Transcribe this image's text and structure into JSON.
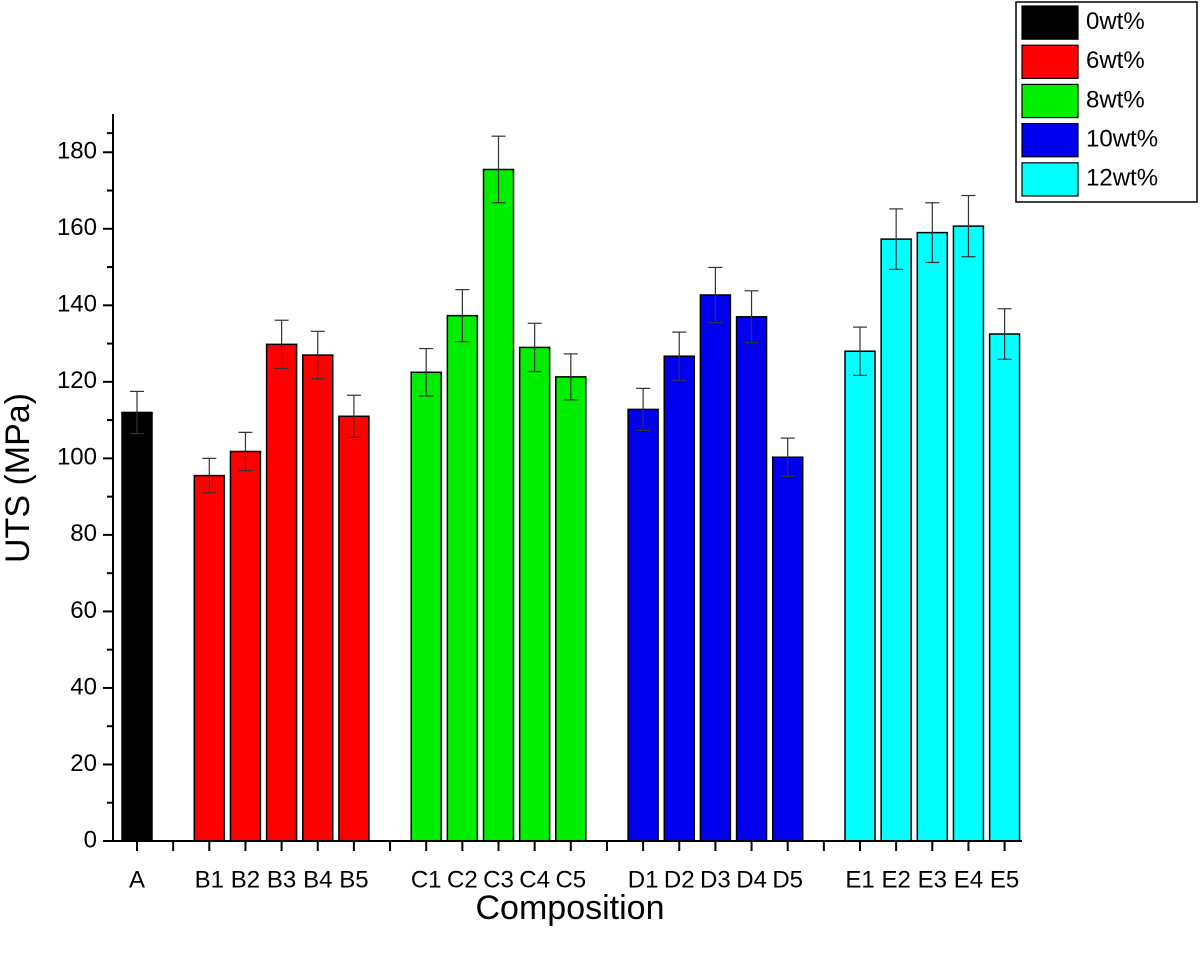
{
  "chart_data": {
    "type": "bar",
    "xlabel": "Composition",
    "ylabel": "UTS (MPa)",
    "categories": [
      "A",
      null,
      "B1",
      "B2",
      "B3",
      "B4",
      "B5",
      null,
      "C1",
      "C2",
      "C3",
      "C4",
      "C5",
      null,
      "D1",
      "D2",
      "D3",
      "D4",
      "D5",
      null,
      "E1",
      "E2",
      "E3",
      "E4",
      "E5"
    ],
    "series": [
      {
        "name": "0wt%",
        "color": "#000000",
        "values": [
          112,
          null,
          null,
          null,
          null,
          null,
          null,
          null,
          null,
          null,
          null,
          null,
          null,
          null,
          null,
          null,
          null,
          null,
          null,
          null,
          null,
          null,
          null,
          null,
          null
        ],
        "errors": [
          5.5,
          null,
          null,
          null,
          null,
          null,
          null,
          null,
          null,
          null,
          null,
          null,
          null,
          null,
          null,
          null,
          null,
          null,
          null,
          null,
          null,
          null,
          null,
          null,
          null
        ]
      },
      {
        "name": "6wt%",
        "color": "#ff0000",
        "values": [
          null,
          null,
          95.5,
          101.8,
          129.8,
          127,
          111,
          null,
          null,
          null,
          null,
          null,
          null,
          null,
          null,
          null,
          null,
          null,
          null,
          null,
          null,
          null,
          null,
          null,
          null
        ],
        "errors": [
          null,
          null,
          4.5,
          5,
          6.3,
          6.2,
          5.5,
          null,
          null,
          null,
          null,
          null,
          null,
          null,
          null,
          null,
          null,
          null,
          null,
          null,
          null,
          null,
          null,
          null,
          null
        ]
      },
      {
        "name": "8wt%",
        "color": "#00ee00",
        "values": [
          null,
          null,
          null,
          null,
          null,
          null,
          null,
          null,
          122.5,
          137.3,
          175.5,
          129,
          121.3,
          null,
          null,
          null,
          null,
          null,
          null,
          null,
          null,
          null,
          null,
          null,
          null
        ],
        "errors": [
          null,
          null,
          null,
          null,
          null,
          null,
          null,
          null,
          6.2,
          6.8,
          8.7,
          6.3,
          6,
          null,
          null,
          null,
          null,
          null,
          null,
          null,
          null,
          null,
          null,
          null,
          null
        ]
      },
      {
        "name": "10wt%",
        "color": "#0000ee",
        "values": [
          null,
          null,
          null,
          null,
          null,
          null,
          null,
          null,
          null,
          null,
          null,
          null,
          null,
          null,
          112.8,
          126.7,
          142.7,
          137,
          100.3,
          null,
          null,
          null,
          null,
          null,
          null
        ],
        "errors": [
          null,
          null,
          null,
          null,
          null,
          null,
          null,
          null,
          null,
          null,
          null,
          null,
          null,
          null,
          5.5,
          6.3,
          7.2,
          6.8,
          5,
          null,
          null,
          null,
          null,
          null,
          null
        ]
      },
      {
        "name": "12wt%",
        "color": "#00ffff",
        "values": [
          null,
          null,
          null,
          null,
          null,
          null,
          null,
          null,
          null,
          null,
          null,
          null,
          null,
          null,
          null,
          null,
          null,
          null,
          null,
          null,
          128,
          157.3,
          159,
          160.7,
          132.5
        ],
        "errors": [
          null,
          null,
          null,
          null,
          null,
          null,
          null,
          null,
          null,
          null,
          null,
          null,
          null,
          null,
          null,
          null,
          null,
          null,
          null,
          null,
          6.3,
          7.9,
          7.8,
          8,
          6.6
        ]
      }
    ],
    "ylim": [
      0,
      190
    ],
    "yticks": [
      0,
      20,
      40,
      60,
      80,
      100,
      120,
      140,
      160,
      180
    ],
    "legend": "upper right"
  }
}
